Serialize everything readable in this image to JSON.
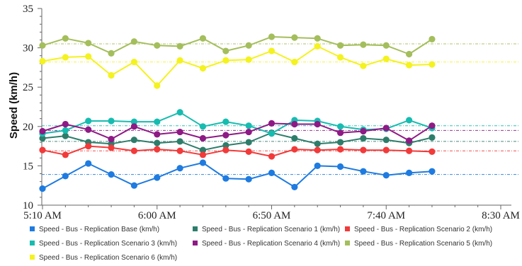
{
  "chart_data": {
    "type": "line",
    "title": "",
    "xlabel": "",
    "ylabel": "Speed (km/h)",
    "ylim": [
      10,
      35
    ],
    "yticks": [
      10,
      15,
      20,
      25,
      30,
      35
    ],
    "xlim": [
      "5:10 AM",
      "8:30 AM"
    ],
    "xticks": [
      "5:10 AM",
      "6:00 AM",
      "6:50 AM",
      "7:40 AM",
      "8:30 AM"
    ],
    "grid": false,
    "legend_position": "bottom",
    "x": [
      "5:10 AM",
      "5:20 AM",
      "5:30 AM",
      "5:40 AM",
      "5:50 AM",
      "6:00 AM",
      "6:10 AM",
      "6:20 AM",
      "6:30 AM",
      "6:40 AM",
      "6:50 AM",
      "7:00 AM",
      "7:10 AM",
      "7:20 AM",
      "7:30 AM",
      "7:40 AM",
      "7:50 AM",
      "8:00 AM"
    ],
    "series": [
      {
        "name": "Speed - Bus - Replication Base (km/h)",
        "color": "#1e7be0",
        "average": 13.9,
        "values": [
          12.1,
          13.7,
          15.3,
          13.9,
          12.5,
          13.5,
          14.7,
          15.4,
          13.4,
          13.3,
          14.1,
          12.3,
          15.0,
          14.9,
          14.3,
          13.8,
          14.1,
          14.3
        ]
      },
      {
        "name": "Speed - Bus - Replication Scenario 1 (km/h)",
        "color": "#2e7d6b",
        "average": 18.1,
        "values": [
          18.5,
          18.8,
          18.0,
          17.8,
          18.3,
          17.9,
          18.1,
          17.0,
          17.6,
          18.0,
          19.2,
          18.5,
          17.8,
          18.0,
          18.5,
          18.3,
          17.9,
          18.6
        ]
      },
      {
        "name": "Speed - Bus - Replication Scenario 2 (km/h)",
        "color": "#f23a3a",
        "average": 16.9,
        "values": [
          17.0,
          16.4,
          17.5,
          17.3,
          16.9,
          17.1,
          16.9,
          16.4,
          17.0,
          16.8,
          16.2,
          17.1,
          17.0,
          17.1,
          17.0,
          17.0,
          16.9,
          16.8
        ]
      },
      {
        "name": "Speed - Bus - Replication Scenario 3 (km/h)",
        "color": "#17bcb0",
        "average": 20.1,
        "values": [
          19.1,
          19.5,
          20.7,
          20.7,
          20.6,
          20.6,
          21.8,
          20.0,
          20.6,
          20.1,
          19.1,
          20.8,
          20.7,
          20.0,
          19.6,
          19.7,
          20.8,
          19.8
        ]
      },
      {
        "name": "Speed - Bus - Replication Scenario 4 (km/h)",
        "color": "#8e1a85",
        "average": 19.5,
        "values": [
          19.4,
          20.3,
          19.6,
          18.4,
          20.0,
          19.0,
          19.3,
          18.5,
          18.9,
          19.3,
          20.4,
          20.3,
          20.3,
          19.2,
          19.4,
          19.8,
          18.2,
          20.1
        ]
      },
      {
        "name": "Speed - Bus - Replication Scenario 5 (km/h)",
        "color": "#a4be5c",
        "average": 30.5,
        "values": [
          30.3,
          31.2,
          30.6,
          29.3,
          30.8,
          30.3,
          30.2,
          31.2,
          29.6,
          30.3,
          31.4,
          31.3,
          31.2,
          30.3,
          30.4,
          30.3,
          29.2,
          31.1
        ]
      },
      {
        "name": "Speed - Bus - Replication Scenario 6 (km/h)",
        "color": "#f4f21f",
        "average": 28.2,
        "values": [
          28.3,
          28.8,
          28.9,
          26.5,
          28.2,
          25.2,
          28.4,
          27.4,
          28.4,
          28.5,
          29.6,
          28.2,
          30.2,
          28.8,
          27.7,
          28.6,
          27.8,
          27.9
        ]
      }
    ]
  }
}
